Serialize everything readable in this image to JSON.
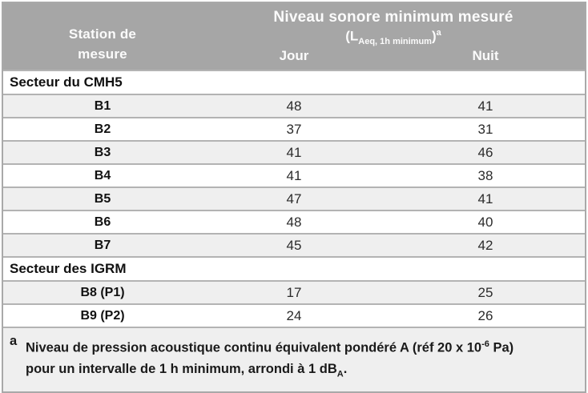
{
  "header": {
    "station_line1": "Station de",
    "station_line2": "mesure",
    "title": "Niveau sonore minimum mesuré",
    "subtitle_open": "(L",
    "subtitle_sub": "Aeq, 1h minimum",
    "subtitle_close": ")",
    "subtitle_sup": "a",
    "col_day": "Jour",
    "col_night": "Nuit"
  },
  "sections": [
    {
      "label": "Secteur du CMH5",
      "rows": [
        {
          "station": "B1",
          "jour": "48",
          "nuit": "41"
        },
        {
          "station": "B2",
          "jour": "37",
          "nuit": "31"
        },
        {
          "station": "B3",
          "jour": "41",
          "nuit": "46"
        },
        {
          "station": "B4",
          "jour": "41",
          "nuit": "38"
        },
        {
          "station": "B5",
          "jour": "47",
          "nuit": "41"
        },
        {
          "station": "B6",
          "jour": "48",
          "nuit": "40"
        },
        {
          "station": "B7",
          "jour": "45",
          "nuit": "42"
        }
      ]
    },
    {
      "label": "Secteur des IGRM",
      "rows": [
        {
          "station": "B8 (P1)",
          "jour": "17",
          "nuit": "25"
        },
        {
          "station": "B9 (P2)",
          "jour": "24",
          "nuit": "26"
        }
      ]
    }
  ],
  "footnote": {
    "marker": "a",
    "line1_text": "Niveau de pression acoustique continu équivalent pondéré A (réf 20 x 10",
    "line1_sup": "-6",
    "line1_end": " Pa)",
    "line2_text": "pour un intervalle de 1 h minimum, arrondi à 1 dB",
    "line2_sub": "A",
    "line2_end": "."
  },
  "colors": {
    "header_bg": "#a6a6a6",
    "header_text": "#fbfbfb",
    "alt_row_bg": "#efefef",
    "separator": "#b3b3b3",
    "outer_border": "#a9a9a9"
  }
}
